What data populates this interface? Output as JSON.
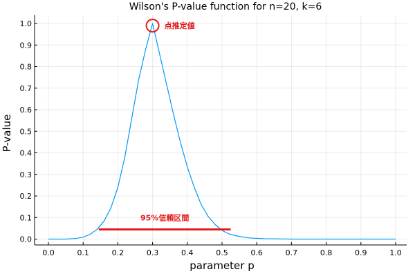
{
  "chart_data": {
    "type": "line",
    "title": "Wilson's P-value function for n=20, k=6",
    "xlabel": "parameter p",
    "ylabel": "P-value",
    "xlim": [
      0.0,
      1.0
    ],
    "ylim": [
      0.0,
      1.0
    ],
    "xticks": [
      "0.0",
      "0.1",
      "0.2",
      "0.3",
      "0.4",
      "0.5",
      "0.6",
      "0.7",
      "0.8",
      "0.9",
      "1.0"
    ],
    "yticks": [
      "0.0",
      "0.1",
      "0.2",
      "0.3",
      "0.4",
      "0.5",
      "0.6",
      "0.7",
      "0.8",
      "0.9",
      "1.0"
    ],
    "grid": true,
    "colors": {
      "curve": "#009af9",
      "annotation": "#e41a1c"
    },
    "series": [
      {
        "x": [
          0.0,
          0.05,
          0.08,
          0.1,
          0.12,
          0.14,
          0.16,
          0.18,
          0.2,
          0.22,
          0.24,
          0.26,
          0.28,
          0.3,
          0.32,
          0.34,
          0.36,
          0.38,
          0.4,
          0.42,
          0.44,
          0.46,
          0.48,
          0.5,
          0.52,
          0.55,
          0.58,
          0.62,
          0.66,
          0.7,
          0.8,
          0.9,
          1.0
        ],
        "y": [
          0.0,
          0.0,
          0.003,
          0.009,
          0.022,
          0.045,
          0.083,
          0.145,
          0.24,
          0.38,
          0.56,
          0.74,
          0.88,
          1.0,
          0.86,
          0.72,
          0.58,
          0.45,
          0.335,
          0.24,
          0.16,
          0.105,
          0.068,
          0.04,
          0.024,
          0.012,
          0.005,
          0.002,
          0.001,
          0.0,
          0.0,
          0.0,
          0.0
        ]
      }
    ],
    "point_estimate": {
      "x": 0.3,
      "y": 0.99,
      "label": "点推定値"
    },
    "confidence_interval": {
      "lower": 0.145,
      "upper": 0.525,
      "level_y": 0.045,
      "label": "95%信頼区間"
    }
  }
}
